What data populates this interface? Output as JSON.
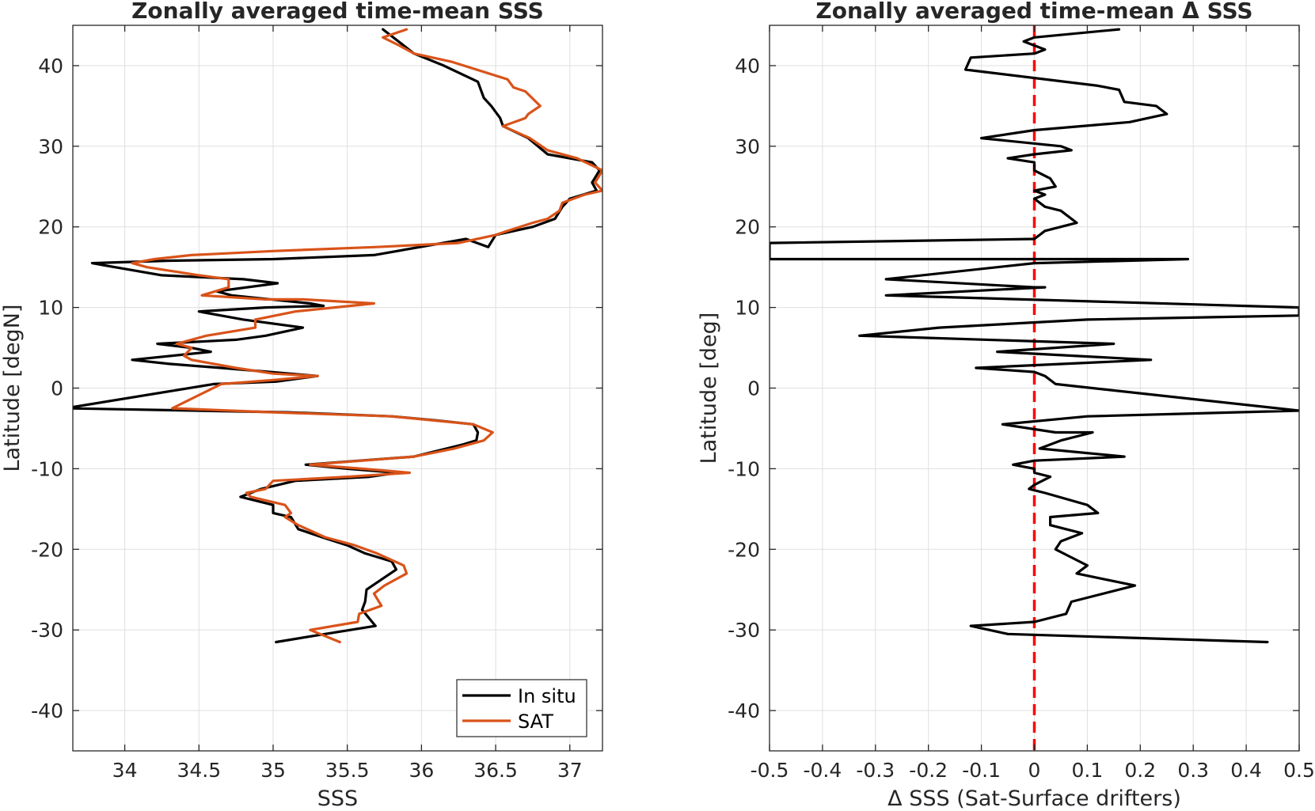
{
  "colors": {
    "in_situ": "#000000",
    "sat": "#D95319",
    "zero_line": "#FF0000",
    "grid": "#DFDFDF",
    "axis": "#262626"
  },
  "chart_data": [
    {
      "type": "line",
      "title": "Zonally averaged time-mean SSS",
      "xlabel": "SSS",
      "ylabel": "Latitude [degN]",
      "xlim": [
        33.65,
        37.22
      ],
      "ylim": [
        -45,
        45
      ],
      "xticks": [
        34,
        34.5,
        35,
        35.5,
        36,
        36.5,
        37
      ],
      "xtick_labels": [
        "34",
        "34.5",
        "35",
        "35.5",
        "36",
        "36.5",
        "37"
      ],
      "yticks": [
        -40,
        -30,
        -20,
        -10,
        0,
        10,
        20,
        30,
        40
      ],
      "ytick_labels": [
        "-40",
        "-30",
        "-20",
        "-10",
        "0",
        "10",
        "20",
        "30",
        "40"
      ],
      "grid": true,
      "legend_position": "bottom-right",
      "series": [
        {
          "name": "In situ",
          "color": "#000000",
          "points": [
            [
              35.74,
              44.5
            ],
            [
              35.95,
              41.5
            ],
            [
              36.15,
              40.0
            ],
            [
              36.38,
              38.0
            ],
            [
              36.42,
              36.0
            ],
            [
              36.47,
              35.0
            ],
            [
              36.53,
              33.5
            ],
            [
              36.55,
              32.5
            ],
            [
              36.72,
              31.0
            ],
            [
              36.85,
              29.0
            ],
            [
              37.15,
              28.0
            ],
            [
              37.2,
              27.0
            ],
            [
              37.15,
              25.5
            ],
            [
              37.18,
              24.5
            ],
            [
              37.0,
              23.5
            ],
            [
              36.95,
              22.5
            ],
            [
              36.9,
              21.0
            ],
            [
              36.75,
              20.0
            ],
            [
              36.5,
              19.0
            ],
            [
              36.45,
              17.5
            ],
            [
              36.3,
              18.5
            ],
            [
              35.68,
              16.5
            ],
            [
              35.0,
              16.0
            ],
            [
              34.3,
              15.8
            ],
            [
              33.78,
              15.5
            ],
            [
              34.25,
              14.0
            ],
            [
              34.8,
              13.5
            ],
            [
              35.03,
              13.0
            ],
            [
              34.62,
              12.0
            ],
            [
              34.72,
              11.5
            ],
            [
              35.25,
              10.5
            ],
            [
              35.34,
              10.2
            ],
            [
              34.95,
              10.0
            ],
            [
              34.5,
              9.5
            ],
            [
              34.8,
              8.5
            ],
            [
              35.2,
              7.5
            ],
            [
              34.95,
              6.5
            ],
            [
              34.75,
              6.0
            ],
            [
              34.22,
              5.5
            ],
            [
              34.45,
              5.0
            ],
            [
              34.58,
              4.5
            ],
            [
              34.05,
              3.5
            ],
            [
              34.3,
              3.0
            ],
            [
              34.65,
              2.5
            ],
            [
              34.98,
              2.0
            ],
            [
              35.3,
              1.5
            ],
            [
              35.02,
              0.8
            ],
            [
              34.6,
              0.5
            ],
            [
              33.6,
              -2.5
            ],
            [
              35.1,
              -3.0
            ],
            [
              35.8,
              -3.5
            ],
            [
              36.1,
              -4.0
            ],
            [
              36.35,
              -4.5
            ],
            [
              36.38,
              -5.5
            ],
            [
              36.37,
              -6.5
            ],
            [
              36.28,
              -7.0
            ],
            [
              35.95,
              -8.5
            ],
            [
              35.22,
              -9.5
            ],
            [
              35.5,
              -10.0
            ],
            [
              35.84,
              -10.5
            ],
            [
              35.65,
              -11.0
            ],
            [
              35.15,
              -11.5
            ],
            [
              34.92,
              -12.5
            ],
            [
              34.78,
              -13.5
            ],
            [
              35.0,
              -14.5
            ],
            [
              35.0,
              -15.5
            ],
            [
              35.12,
              -16.0
            ],
            [
              35.17,
              -17.5
            ],
            [
              35.33,
              -18.5
            ],
            [
              35.5,
              -19.5
            ],
            [
              35.62,
              -20.5
            ],
            [
              35.8,
              -21.5
            ],
            [
              35.83,
              -22.5
            ],
            [
              35.75,
              -23.5
            ],
            [
              35.63,
              -25.0
            ],
            [
              35.62,
              -26.5
            ],
            [
              35.6,
              -27.5
            ],
            [
              35.69,
              -29.5
            ],
            [
              35.35,
              -30.5
            ],
            [
              35.02,
              -31.5
            ]
          ]
        },
        {
          "name": "SAT",
          "color": "#D95319",
          "points": [
            [
              35.9,
              44.5
            ],
            [
              35.74,
              43.5
            ],
            [
              35.85,
              42.5
            ],
            [
              35.95,
              41.5
            ],
            [
              36.2,
              40.5
            ],
            [
              36.58,
              38.3
            ],
            [
              36.62,
              37.3
            ],
            [
              36.7,
              36.8
            ],
            [
              36.8,
              35.0
            ],
            [
              36.72,
              34.0
            ],
            [
              36.7,
              33.5
            ],
            [
              36.55,
              32.5
            ],
            [
              36.73,
              31.0
            ],
            [
              36.85,
              29.5
            ],
            [
              37.05,
              28.5
            ],
            [
              37.22,
              27.0
            ],
            [
              37.17,
              25.5
            ],
            [
              37.22,
              24.5
            ],
            [
              37.1,
              24.0
            ],
            [
              36.95,
              23.0
            ],
            [
              36.93,
              22.0
            ],
            [
              36.85,
              21.0
            ],
            [
              36.75,
              20.5
            ],
            [
              36.58,
              19.5
            ],
            [
              36.5,
              19.0
            ],
            [
              36.25,
              18.0
            ],
            [
              35.7,
              17.5
            ],
            [
              35.0,
              17.0
            ],
            [
              34.45,
              16.5
            ],
            [
              34.2,
              16.0
            ],
            [
              34.05,
              15.5
            ],
            [
              34.15,
              15.0
            ],
            [
              34.5,
              14.0
            ],
            [
              34.7,
              13.5
            ],
            [
              34.7,
              12.5
            ],
            [
              34.52,
              11.5
            ],
            [
              34.95,
              11.0
            ],
            [
              35.2,
              11.0
            ],
            [
              35.68,
              10.5
            ],
            [
              35.15,
              9.5
            ],
            [
              34.88,
              8.5
            ],
            [
              34.88,
              7.5
            ],
            [
              34.55,
              6.5
            ],
            [
              34.45,
              6.0
            ],
            [
              34.35,
              5.5
            ],
            [
              34.45,
              5.0
            ],
            [
              34.4,
              4.0
            ],
            [
              34.45,
              3.5
            ],
            [
              34.75,
              2.5
            ],
            [
              35.0,
              1.8
            ],
            [
              35.3,
              1.5
            ],
            [
              35.0,
              1.0
            ],
            [
              34.65,
              0.5
            ],
            [
              34.32,
              -2.5
            ],
            [
              35.0,
              -3.0
            ],
            [
              35.8,
              -3.5
            ],
            [
              36.35,
              -4.5
            ],
            [
              36.48,
              -5.5
            ],
            [
              36.42,
              -6.5
            ],
            [
              36.22,
              -7.5
            ],
            [
              35.95,
              -8.5
            ],
            [
              35.25,
              -9.5
            ],
            [
              35.6,
              -10.0
            ],
            [
              35.92,
              -10.5
            ],
            [
              35.5,
              -11.0
            ],
            [
              35.0,
              -11.5
            ],
            [
              34.95,
              -12.5
            ],
            [
              34.82,
              -13.0
            ],
            [
              34.85,
              -13.5
            ],
            [
              35.08,
              -14.5
            ],
            [
              35.12,
              -15.5
            ],
            [
              35.08,
              -16.0
            ],
            [
              35.17,
              -17.0
            ],
            [
              35.35,
              -18.5
            ],
            [
              35.55,
              -19.5
            ],
            [
              35.7,
              -20.5
            ],
            [
              35.88,
              -22.0
            ],
            [
              35.9,
              -23.0
            ],
            [
              35.85,
              -23.5
            ],
            [
              35.75,
              -24.5
            ],
            [
              35.68,
              -25.5
            ],
            [
              35.73,
              -27.0
            ],
            [
              35.58,
              -28.0
            ],
            [
              35.57,
              -29.0
            ],
            [
              35.25,
              -30.0
            ],
            [
              35.45,
              -31.5
            ]
          ]
        }
      ]
    },
    {
      "type": "line",
      "title": "Zonally averaged time-mean Δ SSS",
      "xlabel": "Δ SSS (Sat-Surface drifters)",
      "ylabel": "Latitude [deg]",
      "xlim": [
        -0.5,
        0.5
      ],
      "ylim": [
        -45,
        45
      ],
      "xticks": [
        -0.5,
        -0.4,
        -0.3,
        -0.2,
        -0.1,
        0,
        0.1,
        0.2,
        0.3,
        0.4,
        0.5
      ],
      "xtick_labels": [
        "-0.5",
        "-0.4",
        "-0.3",
        "-0.2",
        "-0.1",
        "0",
        "0.1",
        "0.2",
        "0.3",
        "0.4",
        "0.5"
      ],
      "yticks": [
        -40,
        -30,
        -20,
        -10,
        0,
        10,
        20,
        30,
        40
      ],
      "ytick_labels": [
        "-40",
        "-30",
        "-20",
        "-10",
        "0",
        "10",
        "20",
        "30",
        "40"
      ],
      "grid": true,
      "reference_line_x": 0,
      "series": [
        {
          "color": "#000000",
          "points": [
            [
              0.16,
              44.5
            ],
            [
              0.0,
              43.5
            ],
            [
              -0.02,
              43.0
            ],
            [
              0.0,
              42.5
            ],
            [
              0.02,
              42.0
            ],
            [
              0.0,
              41.5
            ],
            [
              -0.12,
              41.0
            ],
            [
              -0.13,
              39.5
            ],
            [
              0.12,
              37.5
            ],
            [
              0.16,
              37.0
            ],
            [
              0.17,
              35.5
            ],
            [
              0.23,
              35.0
            ],
            [
              0.25,
              34.0
            ],
            [
              0.18,
              33.0
            ],
            [
              0.0,
              32.0
            ],
            [
              -0.1,
              31.0
            ],
            [
              0.05,
              30.0
            ],
            [
              0.07,
              29.5
            ],
            [
              0.0,
              29.0
            ],
            [
              -0.05,
              28.5
            ],
            [
              0.0,
              28.0
            ],
            [
              0.0,
              27.0
            ],
            [
              0.03,
              26.0
            ],
            [
              0.04,
              25.0
            ],
            [
              0.0,
              24.5
            ],
            [
              0.02,
              24.0
            ],
            [
              0.0,
              23.5
            ],
            [
              0.02,
              22.5
            ],
            [
              0.05,
              22.0
            ],
            [
              0.08,
              20.5
            ],
            [
              0.02,
              19.5
            ],
            [
              0.0,
              18.5
            ],
            [
              -0.5,
              18.0
            ],
            [
              -0.5,
              16.0
            ],
            [
              0.29,
              16.0
            ],
            [
              0.0,
              15.5
            ],
            [
              -0.28,
              13.5
            ],
            [
              0.0,
              12.5
            ],
            [
              0.02,
              12.5
            ],
            [
              -0.28,
              11.5
            ],
            [
              0.5,
              10.0
            ],
            [
              0.5,
              9.0
            ],
            [
              0.1,
              8.5
            ],
            [
              -0.18,
              7.5
            ],
            [
              -0.33,
              6.5
            ],
            [
              0.15,
              5.5
            ],
            [
              -0.07,
              4.5
            ],
            [
              0.22,
              3.5
            ],
            [
              -0.11,
              2.5
            ],
            [
              0.0,
              2.0
            ],
            [
              0.02,
              1.5
            ],
            [
              0.04,
              0.5
            ],
            [
              0.5,
              -2.8
            ],
            [
              0.1,
              -3.5
            ],
            [
              -0.06,
              -4.5
            ],
            [
              0.04,
              -5.5
            ],
            [
              0.11,
              -5.5
            ],
            [
              0.05,
              -6.5
            ],
            [
              0.01,
              -7.5
            ],
            [
              0.17,
              -8.5
            ],
            [
              0.0,
              -9.0
            ],
            [
              -0.04,
              -9.5
            ],
            [
              0.0,
              -10.0
            ],
            [
              0.0,
              -10.5
            ],
            [
              0.03,
              -11.0
            ],
            [
              0.0,
              -12.0
            ],
            [
              -0.01,
              -12.5
            ],
            [
              0.02,
              -13.0
            ],
            [
              0.1,
              -14.5
            ],
            [
              0.12,
              -15.5
            ],
            [
              0.03,
              -16.0
            ],
            [
              0.03,
              -17.0
            ],
            [
              0.09,
              -18.0
            ],
            [
              0.05,
              -19.0
            ],
            [
              0.04,
              -20.0
            ],
            [
              0.07,
              -21.0
            ],
            [
              0.1,
              -22.0
            ],
            [
              0.08,
              -23.0
            ],
            [
              0.19,
              -24.5
            ],
            [
              0.07,
              -26.5
            ],
            [
              0.06,
              -28.0
            ],
            [
              0.0,
              -29.0
            ],
            [
              -0.12,
              -29.5
            ],
            [
              -0.05,
              -30.5
            ],
            [
              0.44,
              -31.5
            ]
          ]
        }
      ]
    }
  ],
  "legend": {
    "items": [
      {
        "label": "In situ",
        "color": "#000000"
      },
      {
        "label": "SAT",
        "color": "#D95319"
      }
    ]
  }
}
